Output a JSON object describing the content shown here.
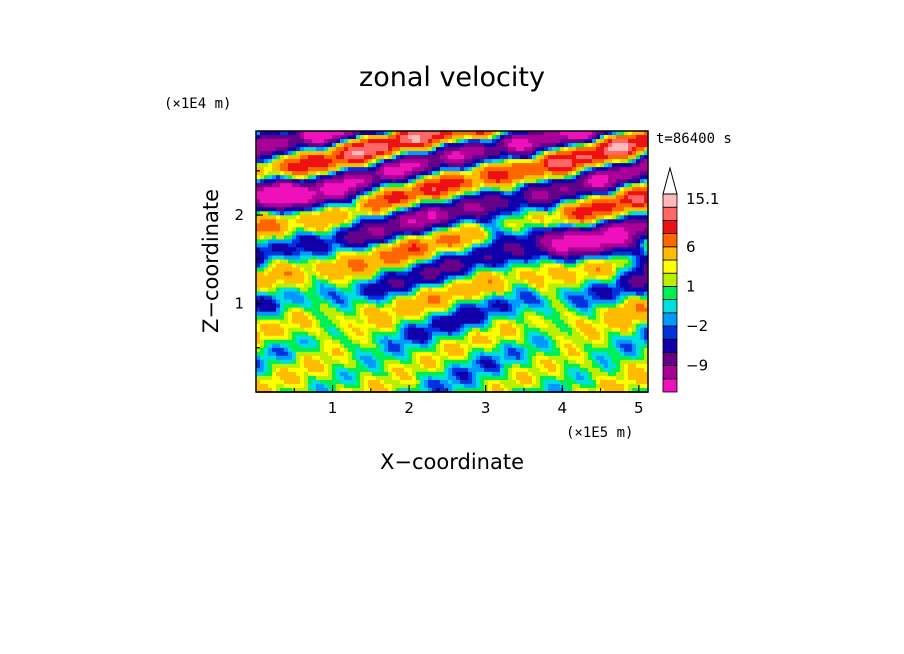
{
  "chart_data": {
    "type": "heatmap",
    "title": "zonal velocity",
    "xlabel": "X−coordinate",
    "ylabel": "Z−coordinate",
    "x_scale_label": "(×1E5 m)",
    "y_scale_label": "(×1E4 m)",
    "time_label": "t=86400 s",
    "xlim": [
      0,
      5.12
    ],
    "ylim": [
      0,
      2.95
    ],
    "x_ticks": [
      1,
      2,
      3,
      4,
      5
    ],
    "y_ticks": [
      1,
      2
    ],
    "colorbar": {
      "levels": [
        -15,
        -12,
        -9,
        -6,
        -3,
        -2,
        -1,
        0,
        1,
        2,
        3,
        6,
        9,
        12,
        15.1
      ],
      "colors": [
        "#ee11bb",
        "#aa0099",
        "#660088",
        "#1100aa",
        "#0033dd",
        "#0099ff",
        "#00dddd",
        "#00ee55",
        "#bbee00",
        "#ffff00",
        "#ffbb00",
        "#ff6600",
        "#ee1111",
        "#ff6666",
        "#ffbbbb"
      ],
      "extend_max": true,
      "labels": [
        {
          "value": -9,
          "text": "−9"
        },
        {
          "value": -2,
          "text": "−2"
        },
        {
          "value": 1,
          "text": "1"
        },
        {
          "value": 6,
          "text": "6"
        },
        {
          "value": 15.1,
          "text": "15.1"
        }
      ]
    }
  }
}
